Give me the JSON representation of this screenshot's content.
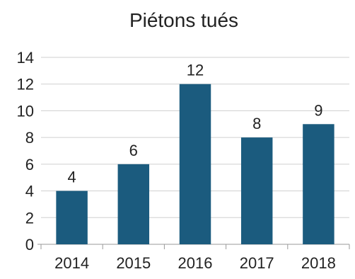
{
  "chart_data": {
    "type": "bar",
    "title": "Piétons tués",
    "xlabel": "",
    "ylabel": "",
    "categories": [
      "2014",
      "2015",
      "2016",
      "2017",
      "2018"
    ],
    "values": [
      4,
      6,
      12,
      8,
      9
    ],
    "ylim": [
      0,
      14
    ],
    "yticks": [
      0,
      2,
      4,
      6,
      8,
      10,
      12,
      14
    ],
    "grid": true,
    "legend": "none",
    "data_labels": true,
    "bar_color": "#1b5b7e",
    "grid_color": "#cfcfcf",
    "axis_color": "#999999"
  }
}
